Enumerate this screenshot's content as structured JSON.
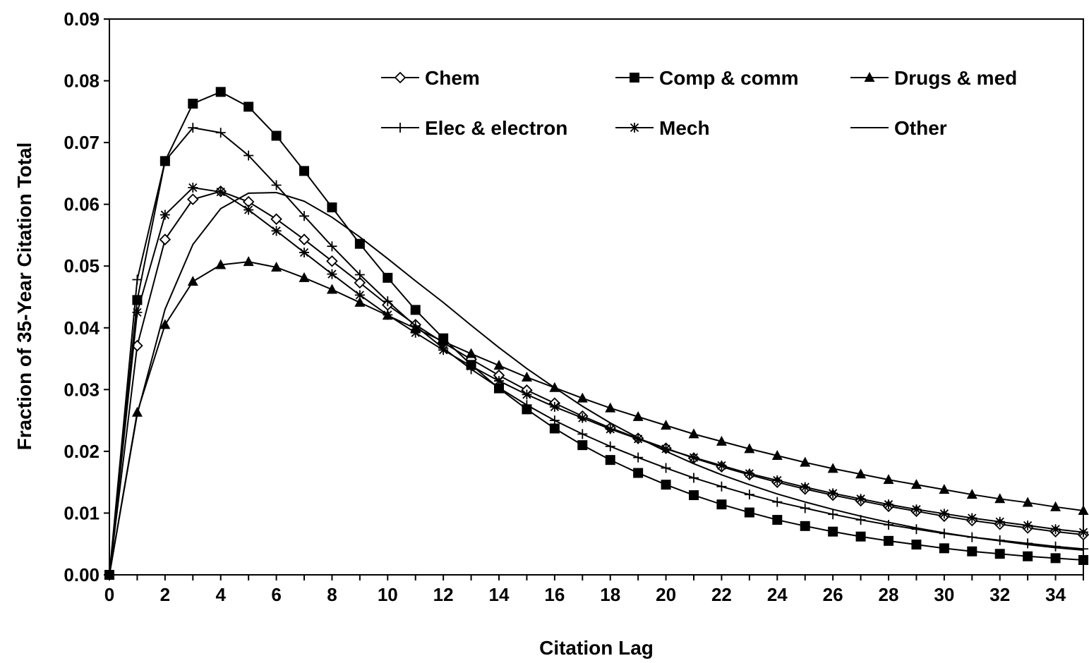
{
  "chart_data": {
    "type": "line",
    "title": "",
    "xlabel": "Citation Lag",
    "ylabel": "Fraction of 35-Year Citation Total",
    "xlim": [
      0,
      35
    ],
    "ylim": [
      0,
      0.09
    ],
    "x_ticks": [
      "0",
      "2",
      "4",
      "6",
      "8",
      "10",
      "12",
      "14",
      "16",
      "18",
      "20",
      "22",
      "24",
      "26",
      "28",
      "30",
      "32",
      "34"
    ],
    "y_ticks": [
      "0.00",
      "0.01",
      "0.02",
      "0.03",
      "0.04",
      "0.05",
      "0.06",
      "0.07",
      "0.08",
      "0.09"
    ],
    "grid": false,
    "legend_position": "top-right",
    "x": [
      0,
      1,
      2,
      3,
      4,
      5,
      6,
      7,
      8,
      9,
      10,
      11,
      12,
      13,
      14,
      15,
      16,
      17,
      18,
      19,
      20,
      21,
      22,
      23,
      24,
      25,
      26,
      27,
      28,
      29,
      30,
      31,
      32,
      33,
      34,
      35
    ],
    "series": [
      {
        "name": "Chem",
        "marker": "diamond-open",
        "values": [
          0,
          0.0371,
          0.0543,
          0.0608,
          0.0621,
          0.0604,
          0.0576,
          0.0543,
          0.0508,
          0.0473,
          0.0437,
          0.0405,
          0.0376,
          0.0349,
          0.0323,
          0.0299,
          0.0278,
          0.0257,
          0.0238,
          0.0221,
          0.0205,
          0.0189,
          0.0175,
          0.0162,
          0.015,
          0.0139,
          0.0129,
          0.012,
          0.0111,
          0.0103,
          0.0095,
          0.0088,
          0.0082,
          0.0076,
          0.007,
          0.0065
        ]
      },
      {
        "name": "Comp & comm",
        "marker": "square-filled",
        "values": [
          0,
          0.0445,
          0.067,
          0.0763,
          0.0782,
          0.0758,
          0.0711,
          0.0654,
          0.0595,
          0.0536,
          0.0481,
          0.0429,
          0.0383,
          0.034,
          0.0302,
          0.0268,
          0.0237,
          0.021,
          0.0186,
          0.0165,
          0.0146,
          0.0129,
          0.0114,
          0.0101,
          0.0089,
          0.0079,
          0.007,
          0.0062,
          0.0055,
          0.0049,
          0.0043,
          0.0038,
          0.0034,
          0.003,
          0.0027,
          0.0024
        ]
      },
      {
        "name": "Drugs & med",
        "marker": "triangle-filled",
        "values": [
          0,
          0.0263,
          0.0405,
          0.0475,
          0.0502,
          0.0507,
          0.0498,
          0.0481,
          0.0462,
          0.0441,
          0.042,
          0.0399,
          0.0378,
          0.0358,
          0.0339,
          0.032,
          0.0303,
          0.0286,
          0.027,
          0.0256,
          0.0242,
          0.0228,
          0.0216,
          0.0204,
          0.0193,
          0.0182,
          0.0172,
          0.0163,
          0.0154,
          0.0146,
          0.0138,
          0.013,
          0.0123,
          0.0117,
          0.011,
          0.0104
        ]
      },
      {
        "name": "Elec & electron",
        "marker": "plus",
        "values": [
          0,
          0.0478,
          0.067,
          0.0724,
          0.0716,
          0.0679,
          0.0631,
          0.0581,
          0.0532,
          0.0486,
          0.0443,
          0.0403,
          0.0367,
          0.0333,
          0.0303,
          0.0275,
          0.025,
          0.0228,
          0.0208,
          0.019,
          0.0173,
          0.0157,
          0.0143,
          0.013,
          0.0118,
          0.0108,
          0.0098,
          0.0089,
          0.0081,
          0.0074,
          0.0067,
          0.0061,
          0.0056,
          0.0051,
          0.0046,
          0.0042
        ]
      },
      {
        "name": "Mech",
        "marker": "asterisk",
        "values": [
          0,
          0.0425,
          0.0583,
          0.0627,
          0.062,
          0.0591,
          0.0557,
          0.0522,
          0.0487,
          0.0453,
          0.0421,
          0.0392,
          0.0364,
          0.0338,
          0.0314,
          0.0292,
          0.0272,
          0.0254,
          0.0236,
          0.022,
          0.0204,
          0.019,
          0.0177,
          0.0164,
          0.0153,
          0.0142,
          0.0132,
          0.0123,
          0.0114,
          0.0106,
          0.0099,
          0.0092,
          0.0086,
          0.008,
          0.0074,
          0.0069
        ]
      },
      {
        "name": "Other",
        "marker": "none",
        "values": [
          0,
          0.026,
          0.043,
          0.0535,
          0.0593,
          0.0618,
          0.0619,
          0.0605,
          0.0579,
          0.0547,
          0.0512,
          0.0476,
          0.0441,
          0.0404,
          0.0368,
          0.0334,
          0.0303,
          0.0273,
          0.0246,
          0.0222,
          0.02,
          0.018,
          0.0162,
          0.0146,
          0.0131,
          0.0118,
          0.0106,
          0.0095,
          0.0085,
          0.0076,
          0.0068,
          0.0061,
          0.0055,
          0.0049,
          0.0044,
          0.004
        ]
      }
    ]
  }
}
